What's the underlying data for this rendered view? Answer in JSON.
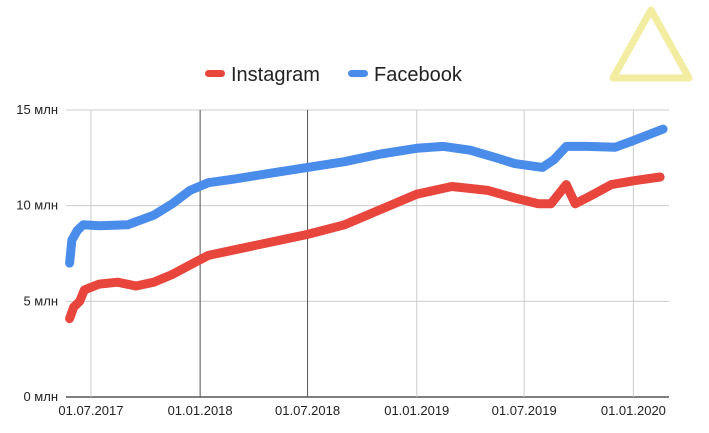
{
  "chart_data": {
    "type": "line",
    "title": "",
    "xlabel": "",
    "ylabel": "",
    "legend_position": "top",
    "ylim": [
      0,
      15
    ],
    "xlim": [
      "2017-05-20",
      "2020-03-01"
    ],
    "y_ticks": [
      {
        "value": 0,
        "label": "0 млн"
      },
      {
        "value": 5,
        "label": "5 млн"
      },
      {
        "value": 10,
        "label": "10 млн"
      },
      {
        "value": 15,
        "label": "15 млн"
      }
    ],
    "x_ticks": [
      {
        "date": "2017-07-01",
        "label": "01.07.2017"
      },
      {
        "date": "2018-01-01",
        "label": "01.01.2018"
      },
      {
        "date": "2018-07-01",
        "label": "01.07.2018"
      },
      {
        "date": "2019-01-01",
        "label": "01.01.2019"
      },
      {
        "date": "2019-07-01",
        "label": "01.07.2019"
      },
      {
        "date": "2020-01-01",
        "label": "01.01.2020"
      }
    ],
    "gridlines": {
      "horizontal": true,
      "vertical": [
        {
          "date": "2017-07-01",
          "color": "#cccccc"
        },
        {
          "date": "2018-01-01",
          "color": "#555555"
        },
        {
          "date": "2018-07-01",
          "color": "#555555"
        },
        {
          "date": "2019-01-01",
          "color": "#cccccc"
        },
        {
          "date": "2019-07-01",
          "color": "#cccccc"
        },
        {
          "date": "2020-01-01",
          "color": "#cccccc"
        }
      ]
    },
    "series": [
      {
        "name": "Instagram",
        "color": "#e8453c",
        "points": [
          [
            "2017-05-26",
            4.1
          ],
          [
            "2017-06-02",
            4.7
          ],
          [
            "2017-06-12",
            5.0
          ],
          [
            "2017-06-20",
            5.6
          ],
          [
            "2017-07-15",
            5.9
          ],
          [
            "2017-08-15",
            6.0
          ],
          [
            "2017-09-15",
            5.8
          ],
          [
            "2017-10-15",
            6.0
          ],
          [
            "2017-11-15",
            6.4
          ],
          [
            "2017-12-15",
            6.9
          ],
          [
            "2018-01-15",
            7.4
          ],
          [
            "2018-03-01",
            7.7
          ],
          [
            "2018-05-01",
            8.1
          ],
          [
            "2018-07-01",
            8.5
          ],
          [
            "2018-09-01",
            9.0
          ],
          [
            "2018-11-01",
            9.8
          ],
          [
            "2019-01-01",
            10.6
          ],
          [
            "2019-03-01",
            11.0
          ],
          [
            "2019-05-01",
            10.8
          ],
          [
            "2019-06-15",
            10.4
          ],
          [
            "2019-07-25",
            10.1
          ],
          [
            "2019-08-15",
            10.1
          ],
          [
            "2019-09-10",
            11.1
          ],
          [
            "2019-09-25",
            10.1
          ],
          [
            "2019-10-20",
            10.5
          ],
          [
            "2019-11-25",
            11.1
          ],
          [
            "2020-01-01",
            11.3
          ],
          [
            "2020-02-15",
            11.5
          ]
        ]
      },
      {
        "name": "Facebook",
        "color": "#4a8cea",
        "points": [
          [
            "2017-05-26",
            7.0
          ],
          [
            "2017-05-30",
            8.2
          ],
          [
            "2017-06-08",
            8.7
          ],
          [
            "2017-06-18",
            9.0
          ],
          [
            "2017-07-15",
            8.95
          ],
          [
            "2017-09-01",
            9.0
          ],
          [
            "2017-10-15",
            9.5
          ],
          [
            "2017-11-15",
            10.1
          ],
          [
            "2017-12-15",
            10.8
          ],
          [
            "2018-01-15",
            11.2
          ],
          [
            "2018-03-01",
            11.4
          ],
          [
            "2018-05-01",
            11.7
          ],
          [
            "2018-07-01",
            12.0
          ],
          [
            "2018-09-01",
            12.3
          ],
          [
            "2018-11-01",
            12.7
          ],
          [
            "2019-01-01",
            13.0
          ],
          [
            "2019-02-15",
            13.1
          ],
          [
            "2019-04-01",
            12.9
          ],
          [
            "2019-05-15",
            12.5
          ],
          [
            "2019-06-15",
            12.2
          ],
          [
            "2019-08-01",
            12.0
          ],
          [
            "2019-08-20",
            12.4
          ],
          [
            "2019-09-10",
            13.1
          ],
          [
            "2019-10-15",
            13.1
          ],
          [
            "2019-12-01",
            13.05
          ],
          [
            "2020-01-01",
            13.4
          ],
          [
            "2020-02-20",
            14.0
          ]
        ]
      }
    ]
  }
}
